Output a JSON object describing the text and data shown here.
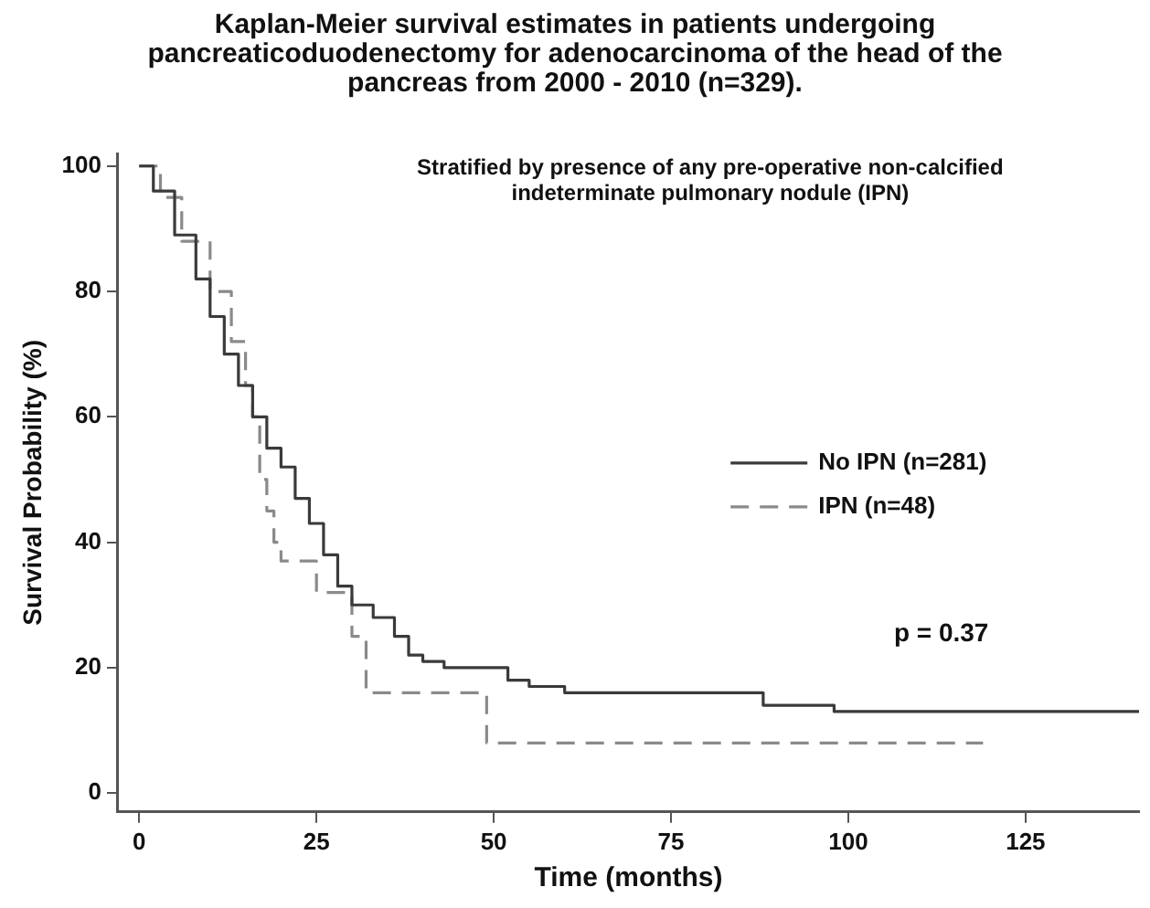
{
  "chart_data": {
    "type": "step",
    "title": "Kaplan-Meier survival estimates in patients undergoing pancreaticoduodenectomy for adenocarcinoma of the head of the pancreas from 2000 - 2010 (n=329).",
    "subtitle": "Stratified by presence of any pre-operative non-calcified indeterminate pulmonary nodule (IPN)",
    "xlabel": "Time (months)",
    "ylabel": "Survival Probability (%)",
    "annotations": [
      "p = 0.37"
    ],
    "series": [
      {
        "name": "No IPN (n=281)",
        "color": "#3a3a3a",
        "line_style": "solid",
        "x": [
          0,
          2,
          5,
          8,
          10,
          12,
          14,
          16,
          18,
          20,
          22,
          24,
          26,
          28,
          30,
          33,
          36,
          38,
          40,
          43,
          50,
          52,
          55,
          60,
          88,
          98,
          141
        ],
        "values": [
          100,
          96,
          89,
          82,
          76,
          70,
          65,
          60,
          55,
          52,
          47,
          43,
          38,
          33,
          30,
          28,
          25,
          22,
          21,
          20,
          20,
          18,
          17,
          16,
          14,
          13,
          13
        ]
      },
      {
        "name": "IPN (n=48)",
        "color": "#8a8a8a",
        "line_style": "dashed",
        "x": [
          0,
          3,
          6,
          10,
          13,
          15,
          16,
          17,
          18,
          19,
          20,
          24,
          25,
          29,
          30,
          32,
          48,
          49,
          119
        ],
        "values": [
          100,
          95,
          88,
          80,
          72,
          65,
          60,
          50,
          45,
          40,
          37,
          37,
          32,
          32,
          25,
          16,
          16,
          8,
          8
        ]
      }
    ],
    "xlim": [
      -3,
      141
    ],
    "xticks": [
      0,
      25,
      50,
      75,
      100,
      125
    ],
    "ylim": [
      -3,
      102
    ],
    "yticks": [
      0,
      20,
      40,
      60,
      80,
      100
    ],
    "grid": false,
    "legend": "right",
    "marker": "none"
  }
}
